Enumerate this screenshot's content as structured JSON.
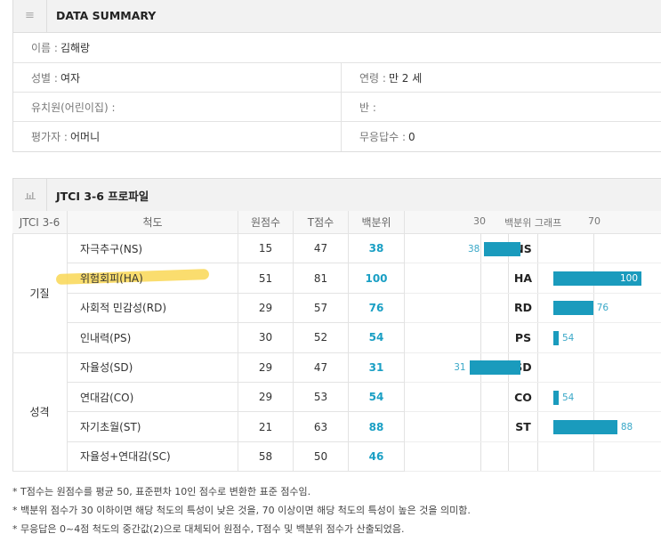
{
  "summary": {
    "title": "DATA SUMMARY",
    "icon": "menu-icon",
    "name": {
      "label": "이름 :",
      "value": "김해랑"
    },
    "gender": {
      "label": "성별 :",
      "value": "여자"
    },
    "age": {
      "label": "연령 :",
      "value": "만 2 세"
    },
    "school": {
      "label": "유치원(어린이집) :",
      "value": ""
    },
    "class": {
      "label": "반 :",
      "value": ""
    },
    "rater": {
      "label": "평가자 :",
      "value": "어머니"
    },
    "noresp": {
      "label": "무응답수 :",
      "value": "0"
    }
  },
  "profile": {
    "title": "JTCI 3-6 프로파일",
    "icon": "bar-chart-icon",
    "headers": [
      "JTCI 3-6",
      "척도",
      "원점수",
      "T점수",
      "백분위"
    ],
    "graph_header": {
      "left_tick": "30",
      "title": "백분위 그래프",
      "right_tick": "70"
    },
    "groups": [
      {
        "label": "기질"
      },
      {
        "label": "성격"
      }
    ],
    "rows": [
      {
        "scale": "자극추구(NS)",
        "code": "NS",
        "raw": "15",
        "t": "47",
        "pct": "38",
        "graph": true
      },
      {
        "scale": "위험회피(HA)",
        "code": "HA",
        "raw": "51",
        "t": "81",
        "pct": "100",
        "graph": true,
        "highlighted": true
      },
      {
        "scale": "사회적 민감성(RD)",
        "code": "RD",
        "raw": "29",
        "t": "57",
        "pct": "76",
        "graph": true
      },
      {
        "scale": "인내력(PS)",
        "code": "PS",
        "raw": "30",
        "t": "52",
        "pct": "54",
        "graph": true
      },
      {
        "scale": "자율성(SD)",
        "code": "SD",
        "raw": "29",
        "t": "47",
        "pct": "31",
        "graph": true
      },
      {
        "scale": "연대감(CO)",
        "code": "CO",
        "raw": "29",
        "t": "53",
        "pct": "54",
        "graph": true
      },
      {
        "scale": "자기초월(ST)",
        "code": "ST",
        "raw": "21",
        "t": "63",
        "pct": "88",
        "graph": true
      },
      {
        "scale": "자율성+연대감(SC)",
        "code": "",
        "raw": "58",
        "t": "50",
        "pct": "46",
        "graph": false
      }
    ],
    "bar_color": "#1a9bbd",
    "pct_color": "#1a9fc4",
    "highlight_color": "#f9d54a"
  },
  "notes": [
    "* T점수는 원점수를 평균 50, 표준편차 10인 점수로 변환한 표준 점수임.",
    "* 백분위 점수가 30 이하이면 해당 척도의 특성이 낮은 것을, 70 이상이면 해당 척도의 특성이 높은 것을 의미함.",
    "* 무응답은 0~4점 척도의 중간값(2)으로 대체되어 원점수, T점수 및 백분위 점수가 산출되었음."
  ]
}
